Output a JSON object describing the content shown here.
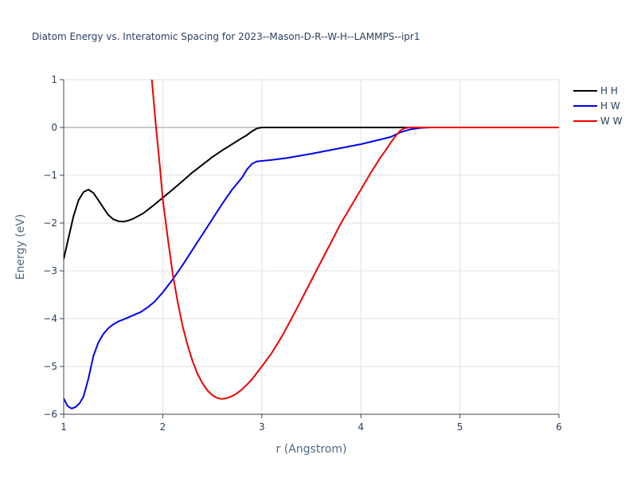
{
  "chart_data": {
    "type": "line",
    "title": "Diatom Energy vs. Interatomic Spacing for 2023--Mason-D-R--W-H--LAMMPS--ipr1",
    "xlabel": "r (Angstrom)",
    "ylabel": "Energy (eV)",
    "xlim": [
      1,
      6
    ],
    "ylim": [
      -6,
      1
    ],
    "x_ticks": [
      1,
      2,
      3,
      4,
      5,
      6
    ],
    "y_ticks": [
      1,
      0,
      -1,
      -2,
      -3,
      -4,
      -5,
      -6
    ],
    "x_tick_labels": [
      "1",
      "2",
      "3",
      "4",
      "5",
      "6"
    ],
    "y_tick_labels": [
      "1",
      "0",
      "−1",
      "−2",
      "−3",
      "−4",
      "−5",
      "−6"
    ],
    "grid": true,
    "legend_position": "top-right",
    "series": [
      {
        "name": "H H",
        "color": "#000000",
        "points": [
          [
            1.0,
            -2.75
          ],
          [
            1.05,
            -2.3
          ],
          [
            1.1,
            -1.85
          ],
          [
            1.15,
            -1.52
          ],
          [
            1.2,
            -1.35
          ],
          [
            1.25,
            -1.3
          ],
          [
            1.3,
            -1.37
          ],
          [
            1.35,
            -1.52
          ],
          [
            1.4,
            -1.68
          ],
          [
            1.45,
            -1.83
          ],
          [
            1.5,
            -1.92
          ],
          [
            1.55,
            -1.96
          ],
          [
            1.6,
            -1.97
          ],
          [
            1.65,
            -1.95
          ],
          [
            1.7,
            -1.91
          ],
          [
            1.8,
            -1.8
          ],
          [
            1.9,
            -1.64
          ],
          [
            2.0,
            -1.47
          ],
          [
            2.1,
            -1.3
          ],
          [
            2.2,
            -1.12
          ],
          [
            2.3,
            -0.94
          ],
          [
            2.4,
            -0.78
          ],
          [
            2.5,
            -0.62
          ],
          [
            2.6,
            -0.48
          ],
          [
            2.7,
            -0.35
          ],
          [
            2.8,
            -0.22
          ],
          [
            2.85,
            -0.16
          ],
          [
            2.9,
            -0.08
          ],
          [
            2.95,
            -0.02
          ],
          [
            3.0,
            0.0
          ],
          [
            3.5,
            0.0
          ],
          [
            4.0,
            0.0
          ],
          [
            4.5,
            0.0
          ],
          [
            5.0,
            0.0
          ],
          [
            6.0,
            0.0
          ]
        ]
      },
      {
        "name": "H W",
        "color": "#0000ee",
        "points": [
          [
            1.0,
            -5.67
          ],
          [
            1.04,
            -5.83
          ],
          [
            1.08,
            -5.88
          ],
          [
            1.12,
            -5.85
          ],
          [
            1.16,
            -5.77
          ],
          [
            1.2,
            -5.63
          ],
          [
            1.25,
            -5.25
          ],
          [
            1.3,
            -4.78
          ],
          [
            1.35,
            -4.5
          ],
          [
            1.4,
            -4.32
          ],
          [
            1.45,
            -4.2
          ],
          [
            1.5,
            -4.12
          ],
          [
            1.55,
            -4.06
          ],
          [
            1.6,
            -4.02
          ],
          [
            1.7,
            -3.93
          ],
          [
            1.78,
            -3.86
          ],
          [
            1.85,
            -3.76
          ],
          [
            1.92,
            -3.64
          ],
          [
            2.0,
            -3.45
          ],
          [
            2.1,
            -3.18
          ],
          [
            2.2,
            -2.88
          ],
          [
            2.3,
            -2.56
          ],
          [
            2.4,
            -2.24
          ],
          [
            2.5,
            -1.92
          ],
          [
            2.6,
            -1.6
          ],
          [
            2.7,
            -1.3
          ],
          [
            2.8,
            -1.05
          ],
          [
            2.85,
            -0.88
          ],
          [
            2.9,
            -0.76
          ],
          [
            2.95,
            -0.71
          ],
          [
            3.0,
            -0.7
          ],
          [
            3.1,
            -0.68
          ],
          [
            3.25,
            -0.64
          ],
          [
            3.5,
            -0.55
          ],
          [
            3.75,
            -0.45
          ],
          [
            4.0,
            -0.35
          ],
          [
            4.2,
            -0.25
          ],
          [
            4.3,
            -0.2
          ],
          [
            4.4,
            -0.1
          ],
          [
            4.5,
            -0.04
          ],
          [
            4.6,
            -0.01
          ],
          [
            4.7,
            0.0
          ],
          [
            5.0,
            0.0
          ],
          [
            6.0,
            0.0
          ]
        ]
      },
      {
        "name": "W W",
        "color": "#ee0000",
        "points": [
          [
            1.89,
            1.0
          ],
          [
            1.93,
            0.05
          ],
          [
            1.97,
            -0.8
          ],
          [
            2.0,
            -1.5
          ],
          [
            2.05,
            -2.3
          ],
          [
            2.1,
            -3.05
          ],
          [
            2.15,
            -3.65
          ],
          [
            2.2,
            -4.15
          ],
          [
            2.25,
            -4.55
          ],
          [
            2.3,
            -4.88
          ],
          [
            2.35,
            -5.15
          ],
          [
            2.4,
            -5.35
          ],
          [
            2.45,
            -5.5
          ],
          [
            2.5,
            -5.6
          ],
          [
            2.55,
            -5.66
          ],
          [
            2.6,
            -5.68
          ],
          [
            2.65,
            -5.66
          ],
          [
            2.7,
            -5.62
          ],
          [
            2.75,
            -5.56
          ],
          [
            2.8,
            -5.48
          ],
          [
            2.85,
            -5.38
          ],
          [
            2.9,
            -5.27
          ],
          [
            3.0,
            -5.0
          ],
          [
            3.1,
            -4.72
          ],
          [
            3.2,
            -4.38
          ],
          [
            3.3,
            -4.0
          ],
          [
            3.4,
            -3.6
          ],
          [
            3.5,
            -3.2
          ],
          [
            3.6,
            -2.8
          ],
          [
            3.7,
            -2.4
          ],
          [
            3.8,
            -2.0
          ],
          [
            3.9,
            -1.65
          ],
          [
            4.0,
            -1.3
          ],
          [
            4.1,
            -0.95
          ],
          [
            4.2,
            -0.62
          ],
          [
            4.25,
            -0.48
          ],
          [
            4.3,
            -0.32
          ],
          [
            4.35,
            -0.18
          ],
          [
            4.4,
            -0.06
          ],
          [
            4.45,
            -0.01
          ],
          [
            4.5,
            0.0
          ],
          [
            5.0,
            0.0
          ],
          [
            6.0,
            0.0
          ]
        ]
      }
    ]
  }
}
